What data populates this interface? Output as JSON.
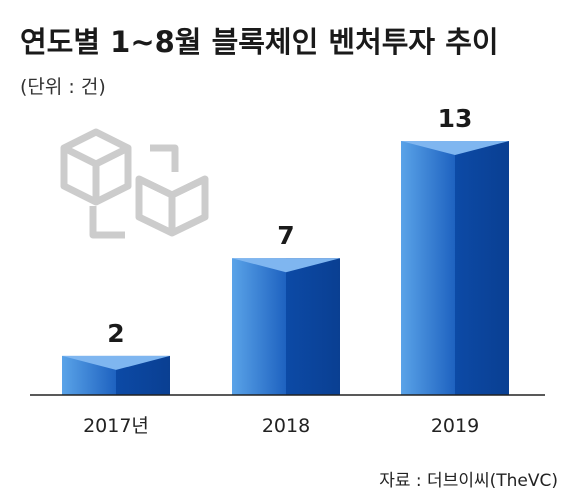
{
  "chart_data": {
    "type": "bar",
    "title": "연도별 1~8월 블록체인 벤처투자 추이",
    "unit_label": "(단위 : 건)",
    "categories": [
      "2017년",
      "2018",
      "2019"
    ],
    "values": [
      2,
      7,
      13
    ],
    "ylim": [
      0,
      13
    ],
    "grid": false,
    "legend": "none",
    "source": "자료 : 더브이씨(TheVC)",
    "colors": {
      "bar_front_light": "#4a93de",
      "bar_front_dark": "#0b3f9a",
      "bar_side": "#0a4aa8",
      "bar_top": "#6aaaf0",
      "baseline": "#222222",
      "icon": "#cccccc"
    }
  },
  "decoration": {
    "icon": "cube-icon"
  }
}
